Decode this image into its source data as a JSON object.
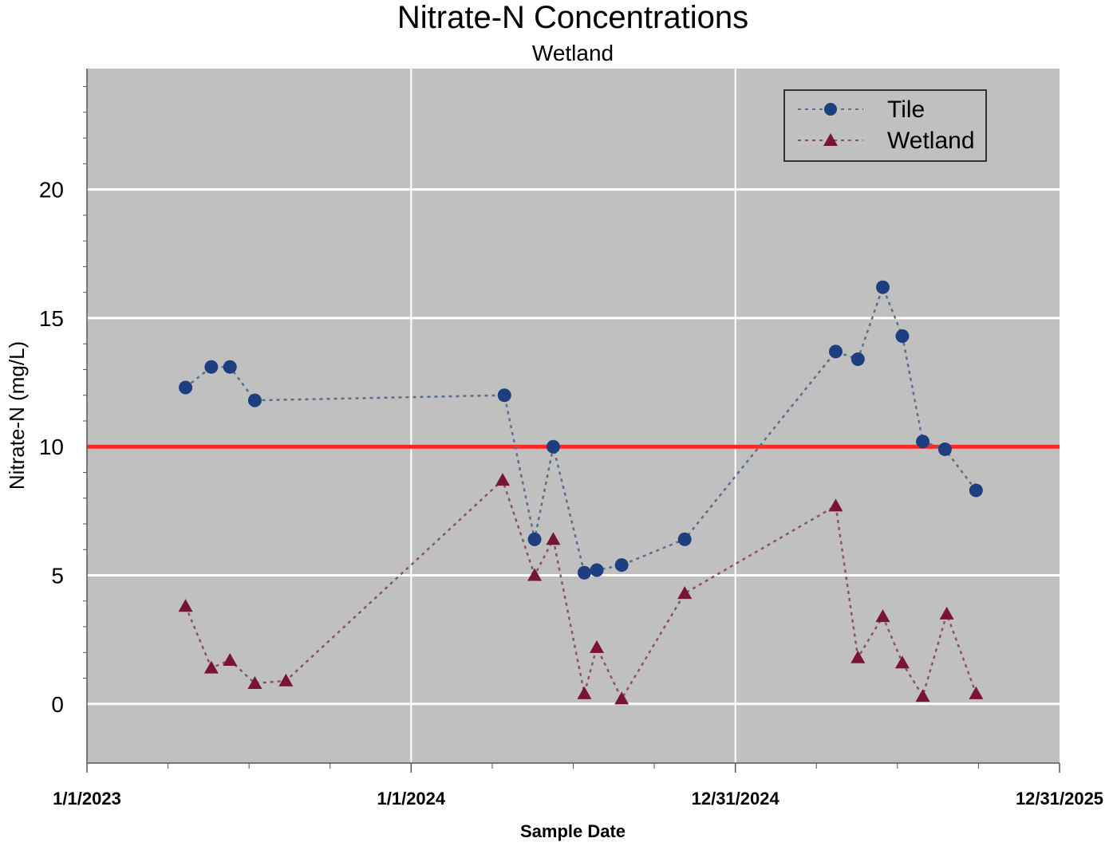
{
  "chart_data": {
    "type": "line",
    "title": "Nitrate-N Concentrations",
    "subtitle": "Wetland",
    "xlabel": "Sample Date",
    "ylabel": "Nitrate-N (mg/L)",
    "ylim": [
      -2.3,
      24.7
    ],
    "yticks": [
      0,
      5,
      10,
      15,
      20
    ],
    "xlim": [
      0,
      1095
    ],
    "xticks": [
      {
        "label": "1/1/2023",
        "day": 0
      },
      {
        "label": "1/1/2024",
        "day": 365
      },
      {
        "label": "12/31/2024",
        "day": 730
      },
      {
        "label": "12/31/2025",
        "day": 1095
      }
    ],
    "reference_line": {
      "value": 10,
      "color": "#ff2a1a"
    },
    "legend_position": "top-right",
    "series": [
      {
        "name": "Tile",
        "marker": "circle",
        "color": "#1e3f7f",
        "line_color": "#5a6f8c",
        "points": [
          {
            "day": 111,
            "value": 12.3
          },
          {
            "day": 140,
            "value": 13.1
          },
          {
            "day": 161,
            "value": 13.1
          },
          {
            "day": 189,
            "value": 11.8
          },
          {
            "day": 470,
            "value": 12.0
          },
          {
            "day": 504,
            "value": 6.4
          },
          {
            "day": 525,
            "value": 10.0
          },
          {
            "day": 560,
            "value": 5.1
          },
          {
            "day": 574,
            "value": 5.2
          },
          {
            "day": 602,
            "value": 5.4
          },
          {
            "day": 673,
            "value": 6.4
          },
          {
            "day": 843,
            "value": 13.7
          },
          {
            "day": 868,
            "value": 13.4
          },
          {
            "day": 896,
            "value": 16.2
          },
          {
            "day": 918,
            "value": 14.3
          },
          {
            "day": 941,
            "value": 10.2
          },
          {
            "day": 966,
            "value": 9.9
          },
          {
            "day": 1001,
            "value": 8.3
          }
        ]
      },
      {
        "name": "Wetland",
        "marker": "triangle",
        "color": "#7a1434",
        "line_color": "#8a5560",
        "points": [
          {
            "day": 111,
            "value": 3.8
          },
          {
            "day": 140,
            "value": 1.4
          },
          {
            "day": 161,
            "value": 1.7
          },
          {
            "day": 189,
            "value": 0.8
          },
          {
            "day": 224,
            "value": 0.9
          },
          {
            "day": 468,
            "value": 8.7
          },
          {
            "day": 504,
            "value": 5.0
          },
          {
            "day": 525,
            "value": 6.4
          },
          {
            "day": 560,
            "value": 0.4
          },
          {
            "day": 574,
            "value": 2.2
          },
          {
            "day": 602,
            "value": 0.2
          },
          {
            "day": 673,
            "value": 4.3
          },
          {
            "day": 843,
            "value": 7.7
          },
          {
            "day": 868,
            "value": 1.8
          },
          {
            "day": 896,
            "value": 3.4
          },
          {
            "day": 918,
            "value": 1.6
          },
          {
            "day": 941,
            "value": 0.3
          },
          {
            "day": 968,
            "value": 3.5
          },
          {
            "day": 1001,
            "value": 0.4
          }
        ]
      }
    ]
  }
}
